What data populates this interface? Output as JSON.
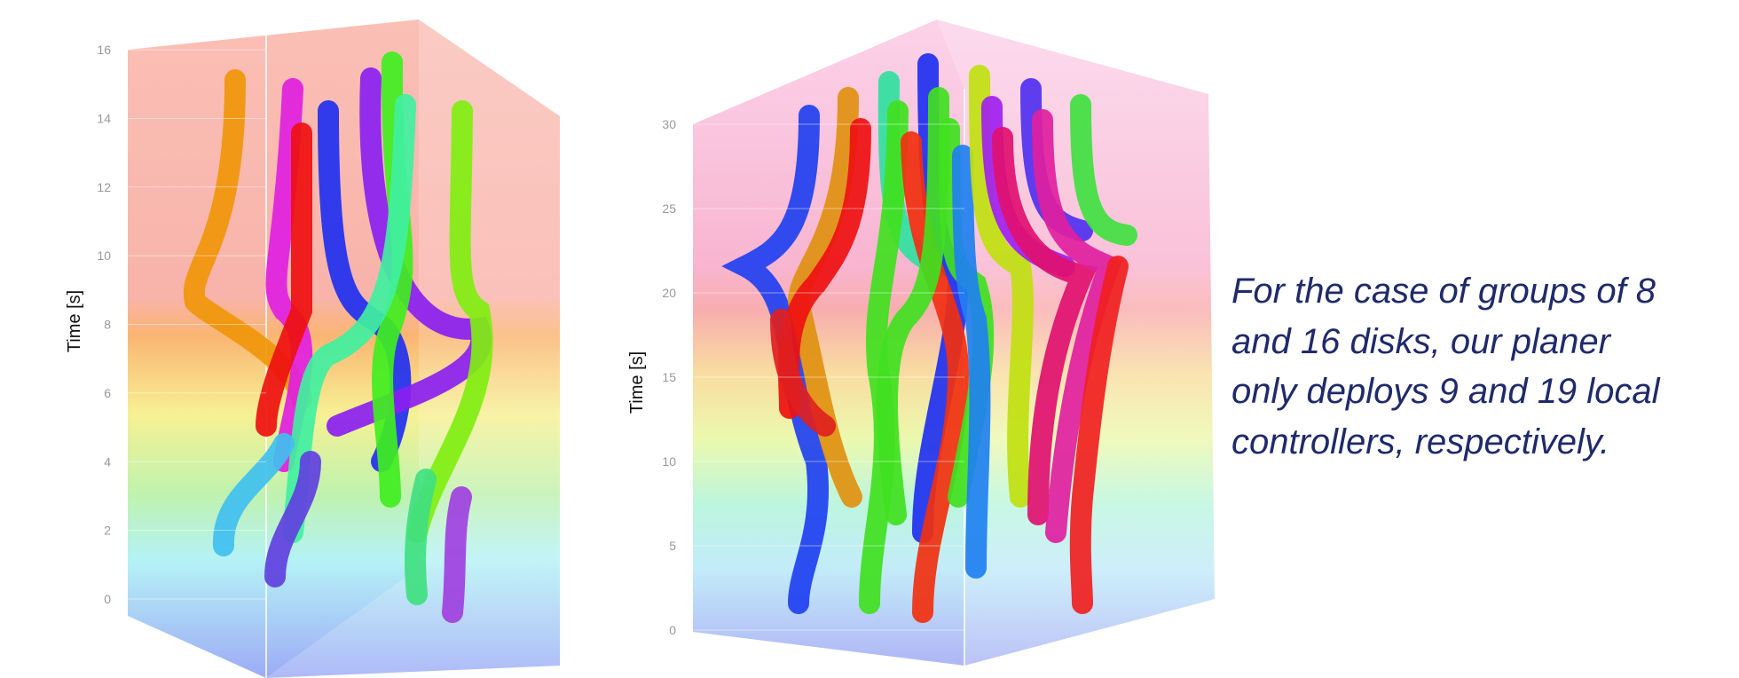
{
  "plots": [
    {
      "axis_label": "Time [s]",
      "ylim": [
        0,
        16
      ],
      "ticks": [
        0,
        2,
        4,
        6,
        8,
        10,
        12,
        14,
        16
      ]
    },
    {
      "axis_label": "Time [s]",
      "ylim": [
        0,
        30
      ],
      "ticks": [
        0,
        5,
        10,
        15,
        20,
        25,
        30
      ]
    }
  ],
  "caption": {
    "lines": [
      "For  the case of groups of 8",
      "and 16 disks,   our   planer",
      "only deploys 9 and 19 local",
      "controllers, respectively."
    ]
  }
}
